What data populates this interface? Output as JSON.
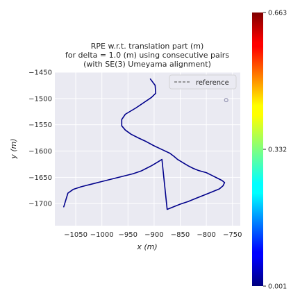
{
  "chart_data": {
    "type": "line",
    "title": [
      "RPE w.r.t. translation part (m)",
      "for delta = 1.0 (m) using consecutive pairs",
      "(with SE(3) Umeyama alignment)"
    ],
    "xlabel": "x (m)",
    "ylabel": "y (m)",
    "xlim": [
      -1090,
      -735
    ],
    "ylim": [
      -1742,
      -1450
    ],
    "xticks": [
      -1050,
      -1000,
      -950,
      -900,
      -850,
      -800,
      -750
    ],
    "xtick_labels": [
      "−1050",
      "−1000",
      "−950",
      "−900",
      "−850",
      "−800",
      "−750"
    ],
    "yticks": [
      -1450,
      -1500,
      -1550,
      -1600,
      -1650,
      -1700
    ],
    "ytick_labels": [
      "−1450",
      "−1500",
      "−1550",
      "−1600",
      "−1650",
      "−1700"
    ],
    "grid": true,
    "legend": {
      "entries": [
        "reference"
      ],
      "placement": "top-right",
      "style": "dashed"
    },
    "colorbar": {
      "min": 0.001,
      "max": 0.663,
      "colormap": "jet",
      "tick_values": [
        0.001,
        0.332,
        0.663
      ],
      "tick_labels": [
        "0.001",
        "0.332",
        "0.663"
      ]
    },
    "series": [
      {
        "color": "#00008b",
        "x": [
          -907,
          -898,
          -897,
          -905,
          -935,
          -955,
          -962,
          -962,
          -955,
          -944,
          -930,
          -915,
          -900,
          -885,
          -870,
          -862,
          -855,
          -845,
          -835,
          -825,
          -815,
          -800,
          -790,
          -780,
          -770,
          -765,
          -768,
          -775,
          -790,
          -805,
          -820,
          -835,
          -850,
          -865,
          -875,
          -885,
          -895,
          -905,
          -915,
          -925,
          -940,
          -960,
          -980,
          -1000,
          -1020,
          -1040,
          -1055,
          -1065,
          -1073
        ],
        "y": [
          -1463,
          -1475,
          -1490,
          -1498,
          -1518,
          -1530,
          -1540,
          -1552,
          -1560,
          -1568,
          -1575,
          -1582,
          -1590,
          -1597,
          -1604,
          -1610,
          -1616,
          -1622,
          -1628,
          -1633,
          -1637,
          -1641,
          -1646,
          -1651,
          -1656,
          -1660,
          -1666,
          -1672,
          -1678,
          -1684,
          -1690,
          -1696,
          -1701,
          -1707,
          -1711,
          -1616,
          -1622,
          -1628,
          -1633,
          -1638,
          -1643,
          -1648,
          -1653,
          -1658,
          -1663,
          -1668,
          -1673,
          -1680,
          -1706
        ]
      }
    ],
    "start_marker": {
      "x": -762,
      "y": -1503
    }
  }
}
